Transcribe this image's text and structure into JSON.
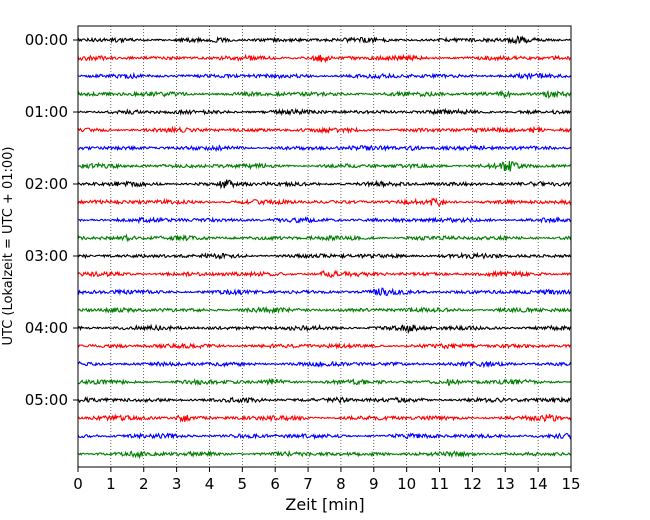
{
  "chart_data": {
    "type": "line",
    "description_kind": "helicorder",
    "xlabel": "Zeit  [min]",
    "ylabel": "UTC (Lokalzeit = UTC + 01:00)",
    "xlim": [
      0,
      15
    ],
    "x_ticks": [
      0,
      1,
      2,
      3,
      4,
      5,
      6,
      7,
      8,
      9,
      10,
      11,
      12,
      13,
      14,
      15
    ],
    "x_tick_labels": [
      "0",
      "1",
      "2",
      "3",
      "4",
      "5",
      "6",
      "7",
      "8",
      "9",
      "10",
      "11",
      "12",
      "13",
      "14",
      "15"
    ],
    "y_tick_labels": [
      "00:00",
      "01:00",
      "02:00",
      "03:00",
      "04:00",
      "05:00"
    ],
    "traces_per_hour": 4,
    "trace_minutes": 15,
    "trace_count": 24,
    "trace_colors": [
      "#000000",
      "#ff0000",
      "#0000ff",
      "#007f00"
    ],
    "grid": {
      "vertical_dotted": true
    },
    "events": [
      {
        "trace": 0,
        "minute": 13.4,
        "amp": 1.2
      },
      {
        "trace": 1,
        "minute": 7.4,
        "amp": 1.8
      },
      {
        "trace": 3,
        "minute": 13.0,
        "amp": 1.5
      },
      {
        "trace": 3,
        "minute": 14.4,
        "amp": 1.5
      },
      {
        "trace": 5,
        "minute": 13.9,
        "amp": 1.7
      },
      {
        "trace": 6,
        "minute": 10.2,
        "amp": 1.3
      },
      {
        "trace": 7,
        "minute": 13.1,
        "amp": 2.4
      },
      {
        "trace": 8,
        "minute": 4.5,
        "amp": 1.6
      },
      {
        "trace": 9,
        "minute": 10.9,
        "amp": 1.6
      },
      {
        "trace": 11,
        "minute": 1.5,
        "amp": 1.4
      },
      {
        "trace": 13,
        "minute": 7.6,
        "amp": 1.6
      },
      {
        "trace": 14,
        "minute": 9.2,
        "amp": 1.6
      },
      {
        "trace": 16,
        "minute": 10.1,
        "amp": 1.7
      },
      {
        "trace": 19,
        "minute": 6.0,
        "amp": 1.4
      },
      {
        "trace": 19,
        "minute": 11.3,
        "amp": 1.4
      },
      {
        "trace": 20,
        "minute": 8.0,
        "amp": 1.4
      },
      {
        "trace": 21,
        "minute": 3.2,
        "amp": 2.2
      },
      {
        "trace": 21,
        "minute": 14.4,
        "amp": 1.6
      },
      {
        "trace": 23,
        "minute": 1.8,
        "amp": 1.3
      }
    ]
  }
}
